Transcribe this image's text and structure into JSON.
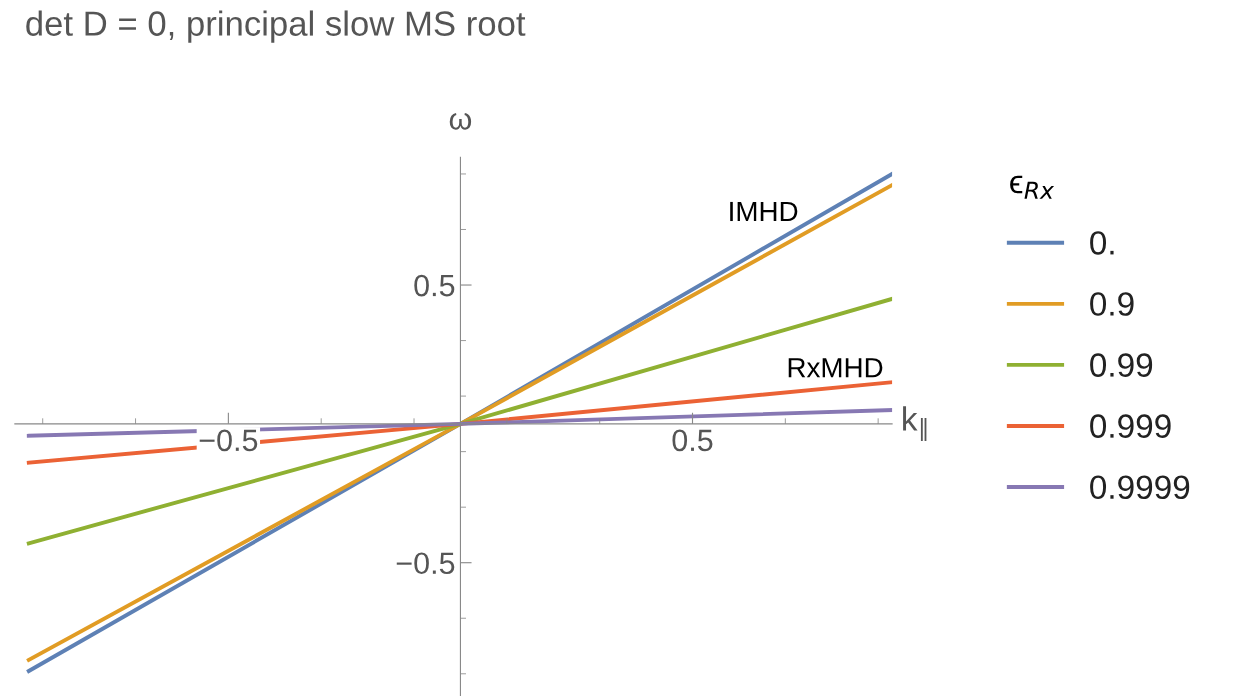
{
  "chart_data": {
    "type": "line",
    "title": "det D = 0, principal slow MS root",
    "xlabel": "k$_{∥}$",
    "ylabel": "ω",
    "legend_title": "ϵ$_{Rx}$",
    "x": [
      -0.93,
      0,
      0.93
    ],
    "series": [
      {
        "name": "0.",
        "color": "#5e81b5",
        "values": [
          -0.89,
          0,
          0.9
        ]
      },
      {
        "name": "0.9",
        "color": "#e19c24",
        "values": [
          -0.85,
          0,
          0.86
        ]
      },
      {
        "name": "0.99",
        "color": "#8fb032",
        "values": [
          -0.43,
          0,
          0.45
        ]
      },
      {
        "name": "0.999",
        "color": "#eb6235",
        "values": [
          -0.14,
          0,
          0.15
        ]
      },
      {
        "name": "0.9999",
        "color": "#8778b3",
        "values": [
          -0.043,
          0,
          0.05
        ]
      }
    ],
    "annotations": [
      "IMHD",
      "RxMHD"
    ],
    "xlim": [
      -0.96,
      0.93
    ],
    "ylim": [
      -0.98,
      0.96
    ],
    "xticks": [
      {
        "value": -0.5,
        "label": "−0.5"
      },
      0.5
    ],
    "yticks": [
      {
        "value": -0.5,
        "label": "−0.5"
      },
      0.5
    ],
    "legend": "right",
    "grid": false,
    "marker": "none",
    "line_style": "solid"
  }
}
